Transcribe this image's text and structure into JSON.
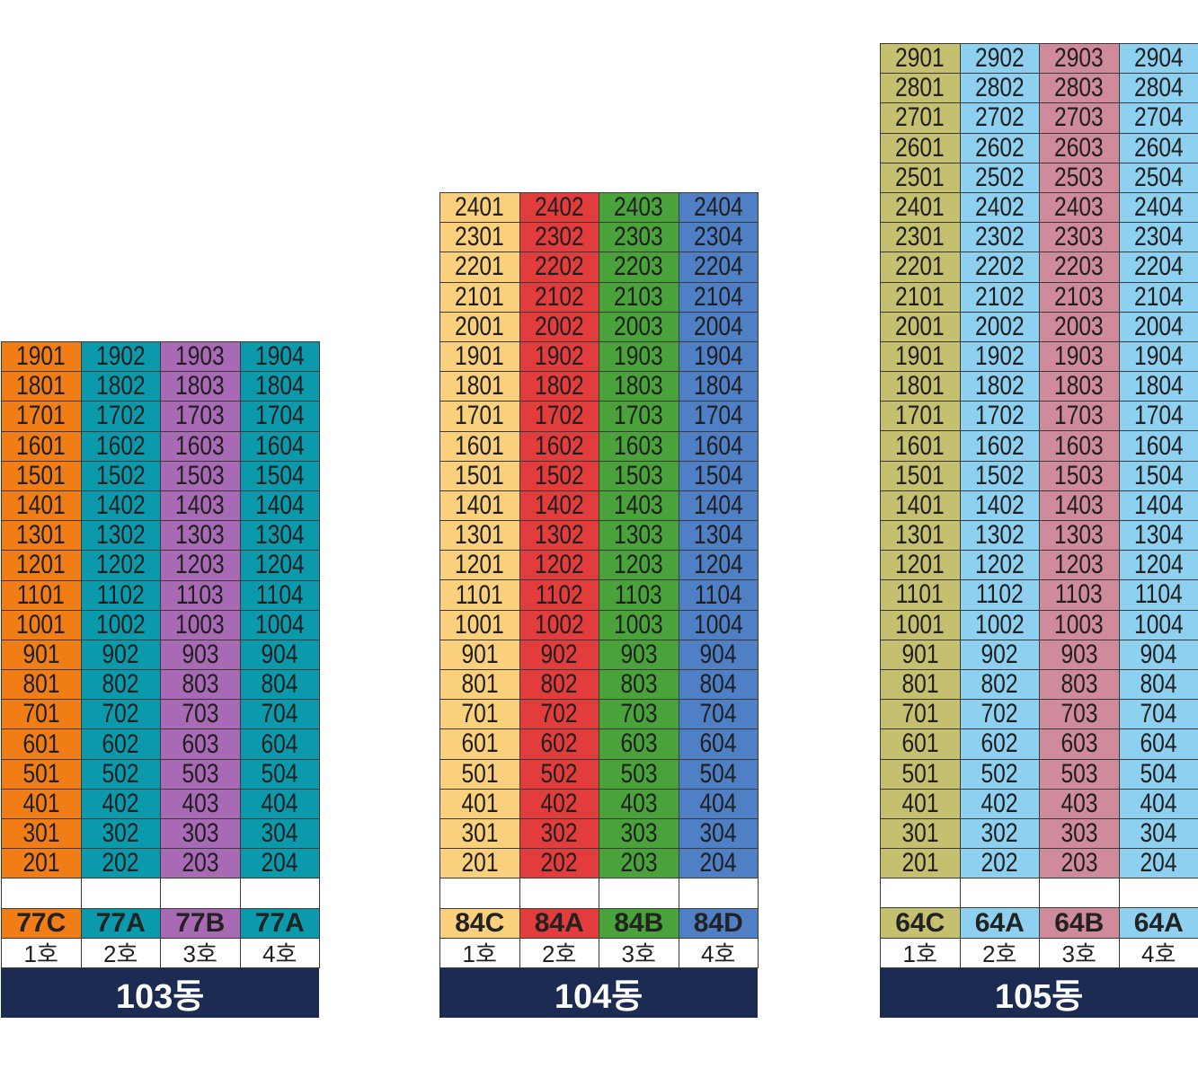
{
  "buildings": [
    {
      "id": "103",
      "name": "103동",
      "top_floor": 19,
      "colors": [
        "#f07d16",
        "#0a9aab",
        "#a96ab5",
        "#0a9aab"
      ],
      "types": [
        "77C",
        "77A",
        "77B",
        "77A"
      ],
      "ho_labels": [
        "1호",
        "2호",
        "3호",
        "4호"
      ]
    },
    {
      "id": "104",
      "name": "104동",
      "top_floor": 24,
      "colors": [
        "#fbd07c",
        "#e23c3c",
        "#4aa33a",
        "#4f7fc4"
      ],
      "types": [
        "84C",
        "84A",
        "84B",
        "84D"
      ],
      "ho_labels": [
        "1호",
        "2호",
        "3호",
        "4호"
      ]
    },
    {
      "id": "105",
      "name": "105동",
      "top_floor": 29,
      "colors": [
        "#c4c070",
        "#8dd0ef",
        "#cf8a9c",
        "#8dd0ef"
      ],
      "types": [
        "64C",
        "64A",
        "64B",
        "64A"
      ],
      "ho_labels": [
        "1호",
        "2호",
        "3호",
        "4호"
      ]
    }
  ],
  "bottom_floor": 2
}
